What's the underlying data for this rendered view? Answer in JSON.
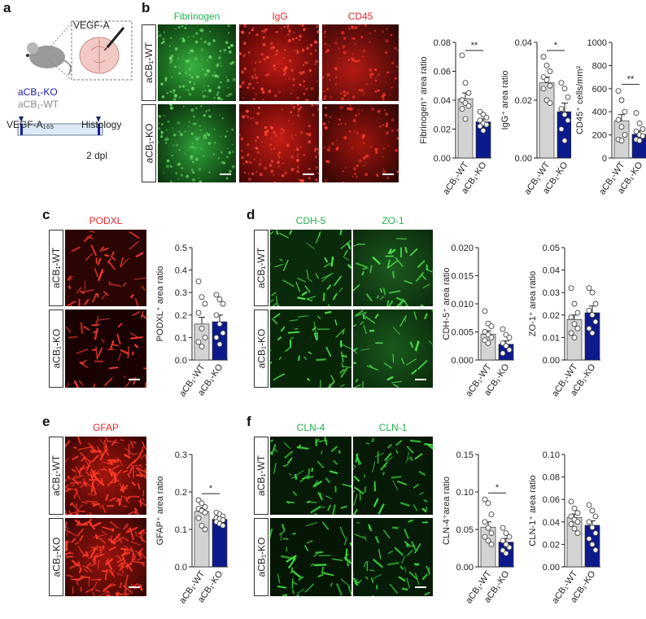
{
  "panels": {
    "a": "a",
    "b": "b",
    "c": "c",
    "d": "d",
    "e": "e",
    "f": "f"
  },
  "panel_a": {
    "injection_label": "VEGF-A",
    "group_ko": "aCB₁-KO",
    "group_wt": "aCB₁-WT",
    "timeline_start": "VEGF-A₁₆₅",
    "timeline_end": "Histology",
    "timeline_duration": "2 dpl",
    "colors": {
      "ko": "#1a1aa6",
      "wt": "#8c8c8c",
      "timeline_fill": "#dbe8f5"
    }
  },
  "rows": {
    "wt": "aCB₁-WT",
    "ko": "aCB₁-KO"
  },
  "stains": {
    "b": [
      "Fibrinogen",
      "IgG",
      "CD45"
    ],
    "c": [
      "PODXL"
    ],
    "d": [
      "CDH-5",
      "ZO-1"
    ],
    "e": [
      "GFAP"
    ],
    "f": [
      "CLN-4",
      "CLN-1"
    ]
  },
  "colors": {
    "wt_bar": "#d3d3d3",
    "ko_bar": "#0d1a8c",
    "green": "#22b24c",
    "red": "#e8262b"
  },
  "chart_data": [
    {
      "id": "b1",
      "type": "bar",
      "ylabel": "Fibrinogen⁺ area ratio",
      "categories": [
        "aCB₁-WT",
        "aCB₁-KO"
      ],
      "values": [
        0.041,
        0.025
      ],
      "errors": [
        0.004,
        0.002
      ],
      "ylim": [
        0,
        0.08
      ],
      "yticks": [
        "0.00",
        "0.02",
        "0.04",
        "0.06",
        "0.08"
      ],
      "points": [
        [
          0.071,
          0.052,
          0.045,
          0.04,
          0.038,
          0.036,
          0.034,
          0.027
        ],
        [
          0.032,
          0.03,
          0.028,
          0.026,
          0.024,
          0.023,
          0.022,
          0.019
        ]
      ],
      "significance": "**"
    },
    {
      "id": "b2",
      "type": "bar",
      "ylabel": "IgG⁺ area ratio",
      "categories": [
        "aCB₁-WT",
        "aCB₁-KO"
      ],
      "values": [
        0.026,
        0.016
      ],
      "errors": [
        0.002,
        0.003
      ],
      "ylim": [
        0,
        0.04
      ],
      "yticks": [
        "0.00",
        "0.02",
        "0.04"
      ],
      "points": [
        [
          0.035,
          0.032,
          0.03,
          0.028,
          0.027,
          0.025,
          0.024,
          0.02,
          0.019
        ],
        [
          0.026,
          0.024,
          0.021,
          0.017,
          0.015,
          0.013,
          0.01,
          0.006
        ]
      ],
      "significance": "*"
    },
    {
      "id": "b3",
      "type": "bar",
      "ylabel": "CD45⁺ cells/mm²",
      "categories": [
        "aCB₁-WT",
        "aCB₁-KO"
      ],
      "values": [
        320,
        205
      ],
      "errors": [
        55,
        30
      ],
      "ylim": [
        0,
        1000
      ],
      "yticks": [
        "0",
        "200",
        "400",
        "600",
        "800",
        "1000"
      ],
      "points": [
        [
          580,
          500,
          400,
          330,
          270,
          200,
          160,
          150
        ],
        [
          390,
          300,
          250,
          230,
          200,
          190,
          160,
          150
        ]
      ],
      "significance": "**"
    },
    {
      "id": "c1",
      "type": "bar",
      "ylabel": "PODXL⁺ area ratio",
      "categories": [
        "aCB₁-WT",
        "aCB₁-KO"
      ],
      "values": [
        0.16,
        0.17
      ],
      "errors": [
        0.03,
        0.03
      ],
      "ylim": [
        0,
        0.5
      ],
      "yticks": [
        "0.0",
        "0.1",
        "0.2",
        "0.3",
        "0.4",
        "0.5"
      ],
      "points": [
        [
          0.35,
          0.28,
          0.25,
          0.21,
          0.14,
          0.1,
          0.08,
          0.06
        ],
        [
          0.29,
          0.27,
          0.25,
          0.2,
          0.16,
          0.12,
          0.1,
          0.07
        ]
      ],
      "significance": ""
    },
    {
      "id": "d1",
      "type": "bar",
      "ylabel": "CDH-5⁺ area ratio",
      "categories": [
        "aCB₁-WT",
        "aCB₁-KO"
      ],
      "values": [
        0.0046,
        0.0028
      ],
      "errors": [
        0.0006,
        0.0006
      ],
      "ylim": [
        0,
        0.02
      ],
      "yticks": [
        "0.000",
        "0.005",
        "0.010",
        "0.015",
        "0.020"
      ],
      "points": [
        [
          0.0087,
          0.0065,
          0.006,
          0.005,
          0.0045,
          0.004,
          0.0035,
          0.003
        ],
        [
          0.0055,
          0.0045,
          0.004,
          0.003,
          0.0025,
          0.0018,
          0.0012
        ]
      ],
      "significance": ""
    },
    {
      "id": "d2",
      "type": "bar",
      "ylabel": "ZO-1⁺ area ratio",
      "categories": [
        "aCB₁-WT",
        "aCB₁-KO"
      ],
      "values": [
        0.018,
        0.021
      ],
      "errors": [
        0.002,
        0.003
      ],
      "ylim": [
        0,
        0.05
      ],
      "yticks": [
        "0.00",
        "0.01",
        "0.02",
        "0.03",
        "0.04",
        "0.05"
      ],
      "points": [
        [
          0.032,
          0.025,
          0.021,
          0.019,
          0.016,
          0.014,
          0.012,
          0.01
        ],
        [
          0.032,
          0.03,
          0.025,
          0.022,
          0.02,
          0.017,
          0.014,
          0.012
        ]
      ],
      "significance": ""
    },
    {
      "id": "e1",
      "type": "bar",
      "ylabel": "GFAP⁺ area ratio",
      "categories": [
        "aCB₁-WT",
        "aCB₁-KO"
      ],
      "values": [
        0.148,
        0.127
      ],
      "errors": [
        0.01,
        0.006
      ],
      "ylim": [
        0,
        0.3
      ],
      "yticks": [
        "0.0",
        "0.1",
        "0.2",
        "0.3"
      ],
      "points": [
        [
          0.178,
          0.17,
          0.16,
          0.155,
          0.15,
          0.145,
          0.13,
          0.11,
          0.1
        ],
        [
          0.145,
          0.14,
          0.135,
          0.13,
          0.128,
          0.125,
          0.12,
          0.115,
          0.11
        ]
      ],
      "significance": "*"
    },
    {
      "id": "f1",
      "type": "bar",
      "ylabel": "CLN-4⁺area ratio",
      "categories": [
        "aCB₁-WT",
        "aCB₁-KO"
      ],
      "values": [
        0.053,
        0.033
      ],
      "errors": [
        0.007,
        0.005
      ],
      "ylim": [
        0,
        0.15
      ],
      "yticks": [
        "0.00",
        "0.05",
        "0.10",
        "0.15"
      ],
      "points": [
        [
          0.09,
          0.085,
          0.07,
          0.06,
          0.052,
          0.045,
          0.04,
          0.035,
          0.03
        ],
        [
          0.052,
          0.045,
          0.04,
          0.035,
          0.03,
          0.026,
          0.022,
          0.018
        ]
      ],
      "significance": "*"
    },
    {
      "id": "f2",
      "type": "bar",
      "ylabel": "CLN-1⁺ area ratio",
      "categories": [
        "aCB₁-WT",
        "aCB₁-KO"
      ],
      "values": [
        0.044,
        0.037
      ],
      "errors": [
        0.003,
        0.004
      ],
      "ylim": [
        0,
        0.1
      ],
      "yticks": [
        "0.00",
        "0.02",
        "0.04",
        "0.06",
        "0.08",
        "0.10"
      ],
      "points": [
        [
          0.058,
          0.052,
          0.048,
          0.045,
          0.042,
          0.04,
          0.038,
          0.034,
          0.03
        ],
        [
          0.055,
          0.05,
          0.045,
          0.04,
          0.035,
          0.03,
          0.025,
          0.02,
          0.015
        ]
      ],
      "significance": ""
    }
  ]
}
